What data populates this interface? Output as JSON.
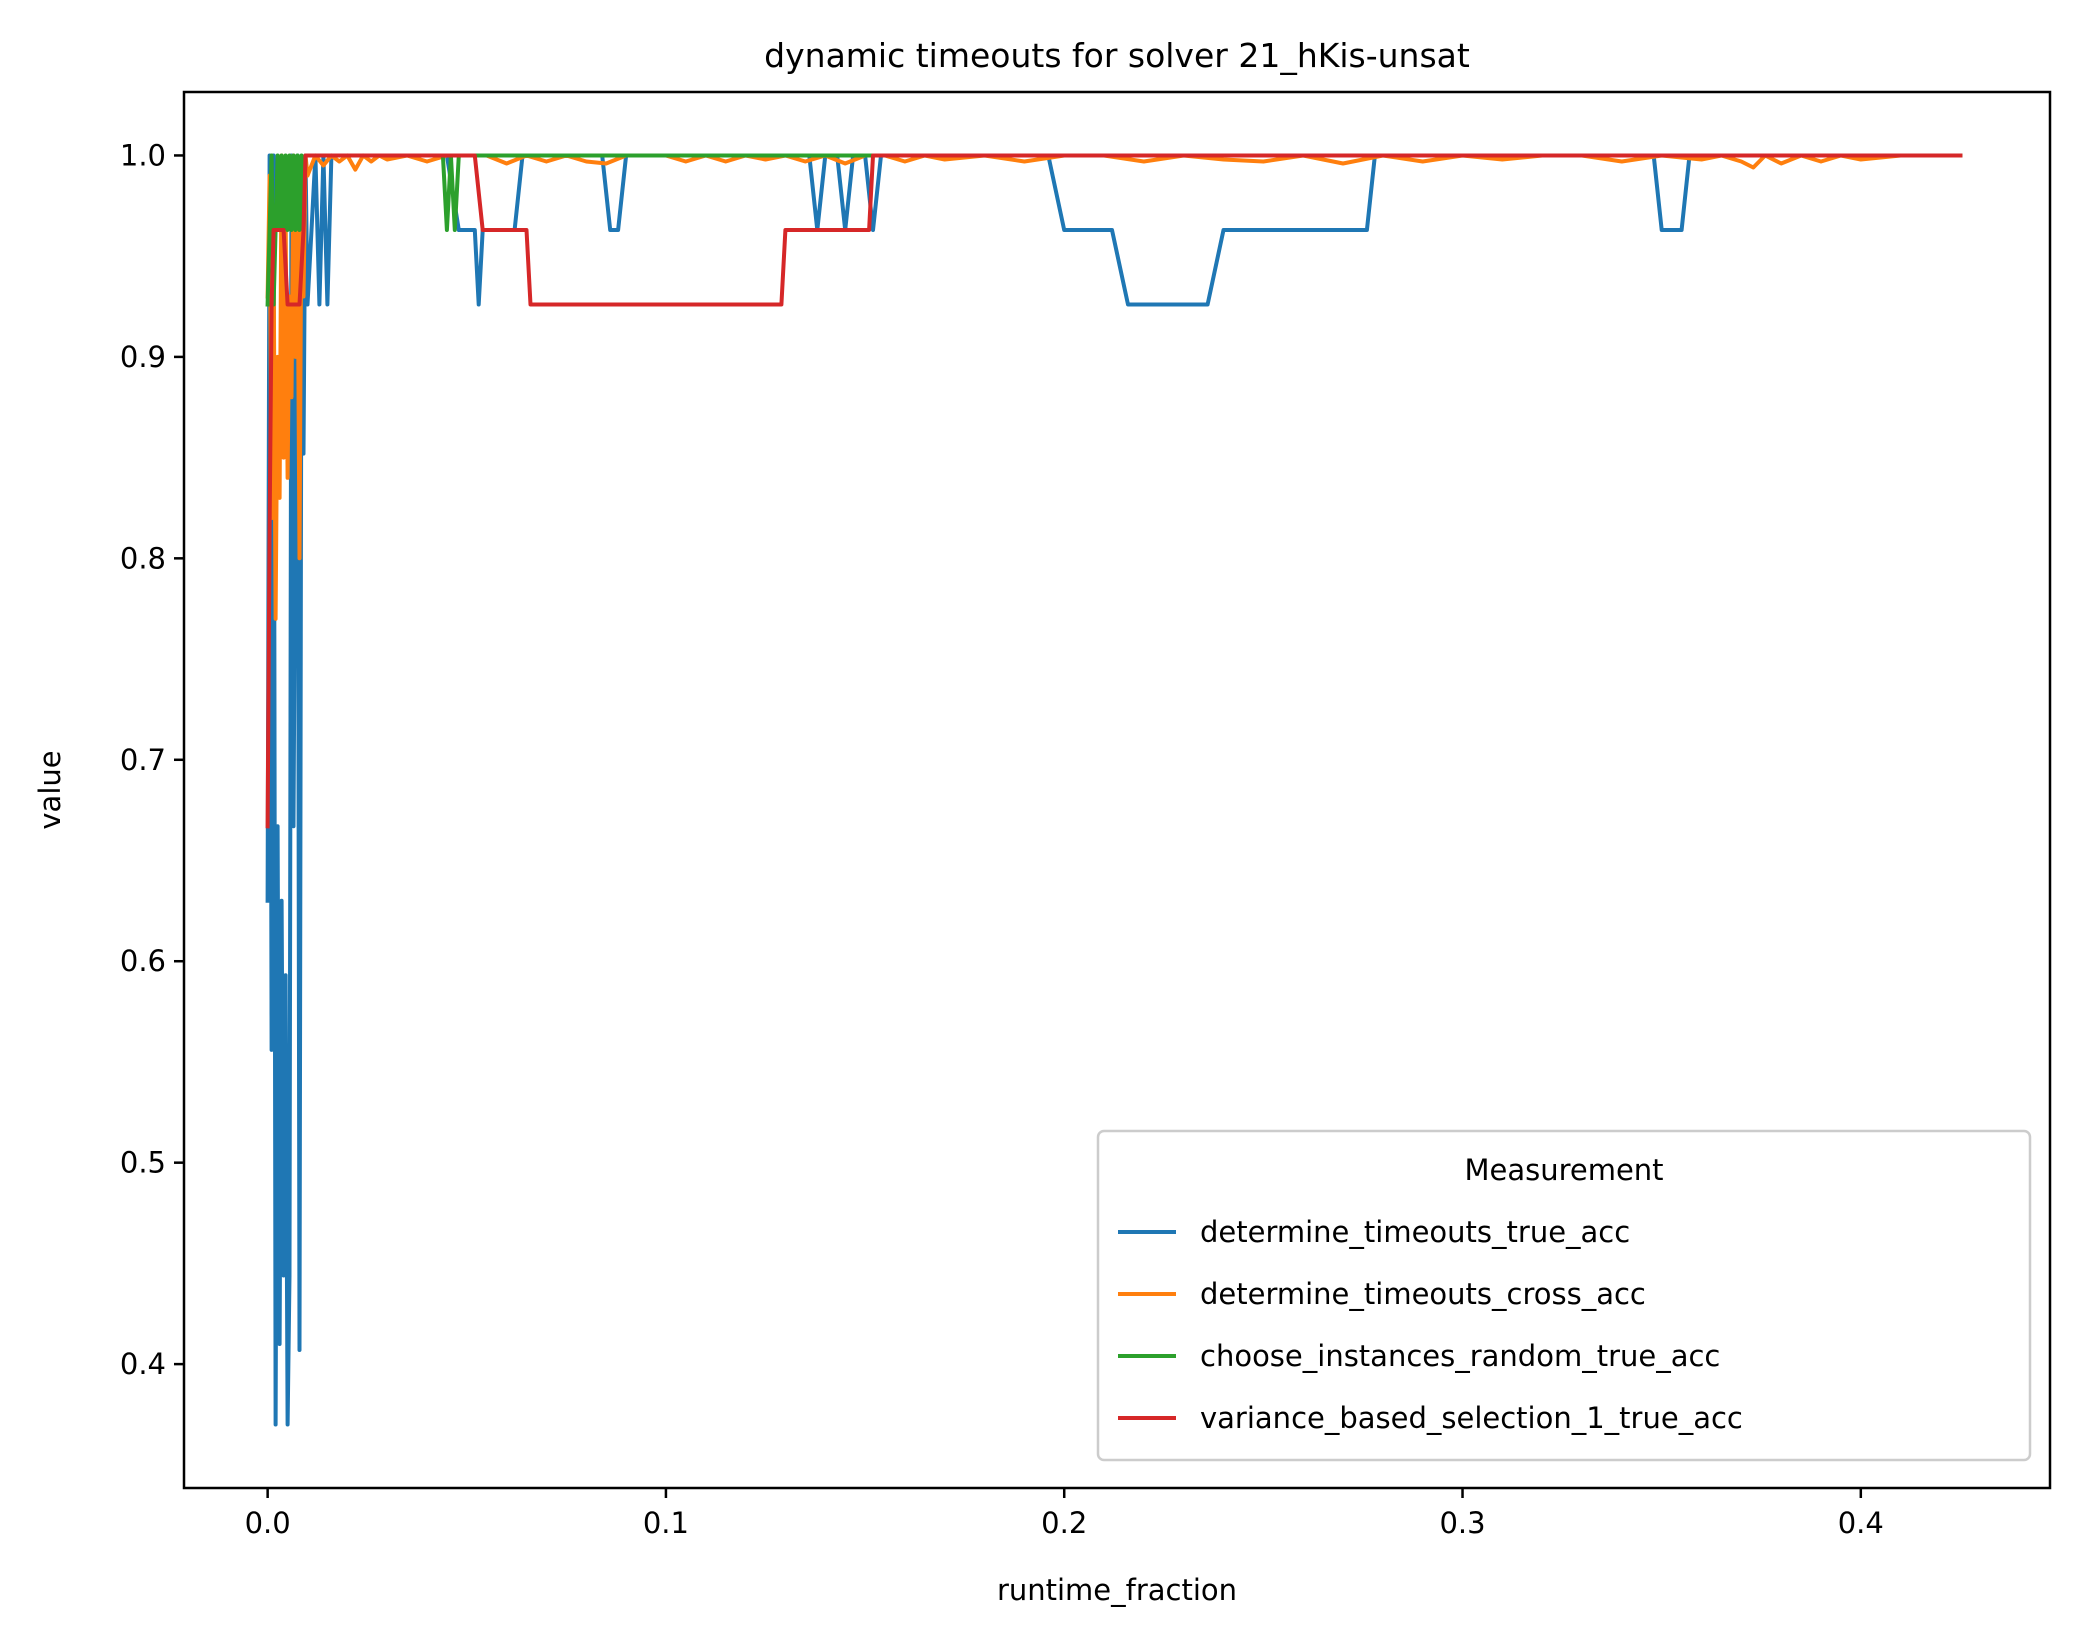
{
  "chart_data": {
    "type": "line",
    "title": "dynamic timeouts for solver 21_hKis-unsat",
    "xlabel": "runtime_fraction",
    "ylabel": "value",
    "xlim": [
      -0.021,
      0.4475
    ],
    "ylim": [
      0.3385,
      1.0315
    ],
    "xticks": [
      0.0,
      0.1,
      0.2,
      0.3,
      0.4
    ],
    "xtick_labels": [
      "0.0",
      "0.1",
      "0.2",
      "0.3",
      "0.4"
    ],
    "yticks": [
      0.4,
      0.5,
      0.6,
      0.7,
      0.8,
      0.9,
      1.0
    ],
    "ytick_labels": [
      "0.4",
      "0.5",
      "0.6",
      "0.7",
      "0.8",
      "0.9",
      "1.0"
    ],
    "grid": false,
    "legend": {
      "title": "Measurement",
      "placement": "lower right"
    },
    "series": [
      {
        "name": "determine_timeouts_true_acc",
        "color": "#1f77b4",
        "x": [
          0.0,
          0.0005,
          0.001,
          0.0015,
          0.002,
          0.0025,
          0.003,
          0.0035,
          0.004,
          0.0045,
          0.005,
          0.0055,
          0.006,
          0.0065,
          0.007,
          0.0075,
          0.008,
          0.0085,
          0.009,
          0.0095,
          0.01,
          0.011,
          0.012,
          0.013,
          0.014,
          0.015,
          0.016,
          0.018,
          0.02,
          0.045,
          0.048,
          0.05,
          0.052,
          0.053,
          0.054,
          0.06,
          0.062,
          0.064,
          0.084,
          0.086,
          0.088,
          0.09,
          0.136,
          0.138,
          0.14,
          0.143,
          0.145,
          0.147,
          0.15,
          0.152,
          0.154,
          0.156,
          0.196,
          0.2,
          0.212,
          0.216,
          0.236,
          0.24,
          0.276,
          0.278,
          0.348,
          0.35,
          0.355,
          0.357,
          0.425
        ],
        "y": [
          0.63,
          1.0,
          0.556,
          1.0,
          0.37,
          0.667,
          0.41,
          0.63,
          0.444,
          0.593,
          0.37,
          0.444,
          1.0,
          0.667,
          0.852,
          1.0,
          0.407,
          0.963,
          0.852,
          1.0,
          0.926,
          0.963,
          1.0,
          0.926,
          1.0,
          0.926,
          1.0,
          1.0,
          1.0,
          1.0,
          0.963,
          0.963,
          0.963,
          0.926,
          0.963,
          0.963,
          0.963,
          1.0,
          1.0,
          0.963,
          0.963,
          1.0,
          1.0,
          0.963,
          1.0,
          1.0,
          0.963,
          1.0,
          1.0,
          0.963,
          1.0,
          1.0,
          1.0,
          0.963,
          0.963,
          0.926,
          0.926,
          0.963,
          0.963,
          1.0,
          1.0,
          0.963,
          0.963,
          1.0,
          1.0
        ]
      },
      {
        "name": "determine_timeouts_cross_acc",
        "color": "#ff7f0e",
        "x": [
          0.0,
          0.0005,
          0.001,
          0.0015,
          0.002,
          0.0025,
          0.003,
          0.0035,
          0.004,
          0.0045,
          0.005,
          0.0055,
          0.006,
          0.0065,
          0.007,
          0.0075,
          0.008,
          0.0085,
          0.009,
          0.0095,
          0.01,
          0.012,
          0.014,
          0.016,
          0.018,
          0.02,
          0.022,
          0.024,
          0.026,
          0.028,
          0.03,
          0.035,
          0.04,
          0.045,
          0.05,
          0.055,
          0.06,
          0.065,
          0.07,
          0.075,
          0.08,
          0.085,
          0.09,
          0.1,
          0.105,
          0.11,
          0.115,
          0.12,
          0.125,
          0.13,
          0.135,
          0.14,
          0.145,
          0.15,
          0.155,
          0.16,
          0.165,
          0.17,
          0.18,
          0.19,
          0.2,
          0.21,
          0.22,
          0.23,
          0.24,
          0.25,
          0.26,
          0.27,
          0.28,
          0.29,
          0.3,
          0.31,
          0.32,
          0.33,
          0.34,
          0.35,
          0.36,
          0.365,
          0.37,
          0.373,
          0.376,
          0.38,
          0.385,
          0.39,
          0.395,
          0.4,
          0.41,
          0.425
        ],
        "y": [
          0.93,
          0.99,
          0.82,
          0.95,
          0.77,
          0.9,
          0.83,
          1.0,
          0.85,
          0.97,
          0.84,
          0.93,
          0.88,
          1.0,
          0.9,
          0.97,
          0.8,
          0.99,
          0.93,
          1.0,
          0.99,
          1.0,
          0.995,
          1.0,
          0.997,
          1.0,
          0.993,
          1.0,
          0.997,
          1.0,
          0.998,
          1.0,
          0.997,
          1.0,
          1.0,
          1.0,
          0.996,
          1.0,
          0.997,
          1.0,
          0.997,
          0.996,
          1.0,
          1.0,
          0.997,
          1.0,
          0.997,
          1.0,
          0.998,
          1.0,
          0.997,
          1.0,
          0.996,
          1.0,
          1.0,
          0.997,
          1.0,
          0.998,
          1.0,
          0.997,
          1.0,
          1.0,
          0.997,
          1.0,
          0.998,
          0.997,
          1.0,
          0.996,
          1.0,
          0.997,
          1.0,
          0.998,
          1.0,
          1.0,
          0.997,
          1.0,
          0.998,
          1.0,
          0.997,
          0.994,
          1.0,
          0.996,
          1.0,
          0.997,
          1.0,
          0.998,
          1.0,
          1.0
        ]
      },
      {
        "name": "choose_instances_random_true_acc",
        "color": "#2ca02c",
        "x": [
          0.0,
          0.0005,
          0.001,
          0.0015,
          0.002,
          0.0025,
          0.003,
          0.0035,
          0.004,
          0.0045,
          0.005,
          0.0055,
          0.006,
          0.0065,
          0.007,
          0.0075,
          0.008,
          0.0085,
          0.009,
          0.0095,
          0.01,
          0.02,
          0.044,
          0.045,
          0.046,
          0.047,
          0.048,
          0.1,
          0.15,
          0.2,
          0.3,
          0.425
        ],
        "y": [
          0.926,
          0.963,
          1.0,
          0.926,
          0.963,
          1.0,
          0.963,
          1.0,
          0.963,
          1.0,
          0.963,
          1.0,
          0.963,
          1.0,
          0.963,
          1.0,
          0.963,
          1.0,
          0.963,
          1.0,
          1.0,
          1.0,
          1.0,
          0.963,
          1.0,
          0.963,
          1.0,
          1.0,
          1.0,
          1.0,
          1.0,
          1.0
        ]
      },
      {
        "name": "variance_based_selection_1_true_acc",
        "color": "#d62728",
        "x": [
          0.0,
          0.0005,
          0.001,
          0.0015,
          0.002,
          0.003,
          0.004,
          0.005,
          0.006,
          0.007,
          0.008,
          0.009,
          0.0095,
          0.01,
          0.02,
          0.052,
          0.054,
          0.065,
          0.066,
          0.129,
          0.13,
          0.151,
          0.152,
          0.153,
          0.2,
          0.425
        ],
        "y": [
          0.667,
          0.815,
          0.926,
          0.963,
          0.963,
          0.963,
          0.963,
          0.926,
          0.926,
          0.926,
          0.926,
          0.963,
          1.0,
          1.0,
          1.0,
          1.0,
          0.963,
          0.963,
          0.926,
          0.926,
          0.963,
          0.963,
          1.0,
          1.0,
          1.0,
          1.0
        ]
      }
    ]
  }
}
